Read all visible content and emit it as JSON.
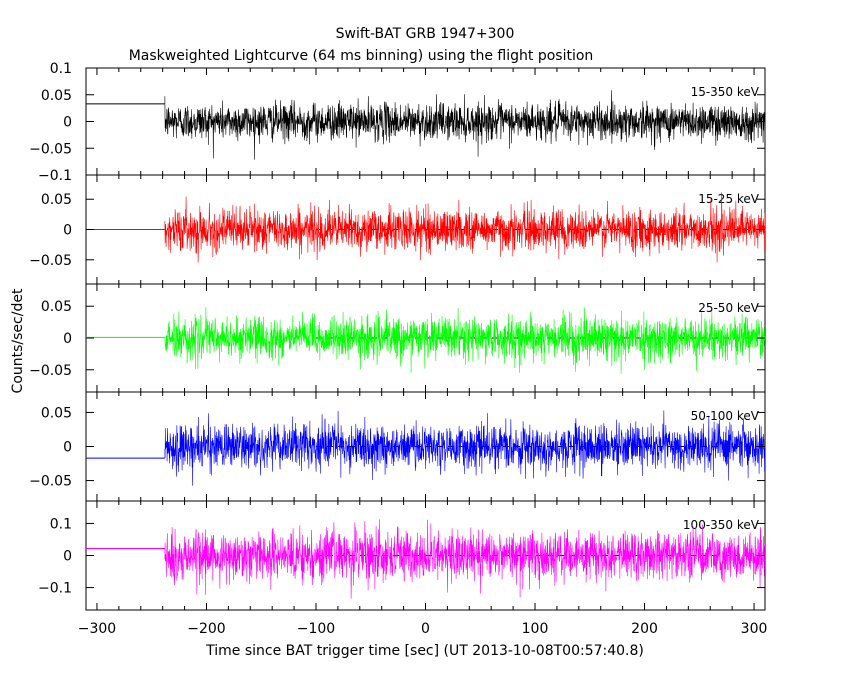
{
  "chart_data": {
    "type": "line",
    "title": "Swift-BAT GRB 1947+300",
    "subtitle": "Maskweighted Lightcurve (64 ms binning) using the flight position",
    "xlabel": "Time since BAT trigger time [sec] (UT 2013-10-08T00:57:40.8)",
    "ylabel": "Counts/sec/det",
    "xlim": [
      -310,
      310
    ],
    "xticks": [
      -300,
      -200,
      -100,
      0,
      100,
      200,
      300
    ],
    "data_start": -238,
    "panels": [
      {
        "band_label": "15-350 keV",
        "color": "#000000",
        "ylim": [
          -0.1,
          0.1
        ],
        "yticks": [
          {
            "v": 0.1,
            "t": "0.1"
          },
          {
            "v": 0.05,
            "t": "0.05"
          },
          {
            "v": 0,
            "t": "0"
          },
          {
            "v": -0.05,
            "t": "−0.05"
          },
          {
            "v": -0.1,
            "t": "−0.1"
          }
        ],
        "pre_level": 0.033,
        "noise_sigma": 0.017,
        "dashed_zero": false
      },
      {
        "band_label": "15-25 keV",
        "color": "#ff0000",
        "ylim": [
          -0.09,
          0.09
        ],
        "yticks": [
          {
            "v": 0.05,
            "t": "0.05"
          },
          {
            "v": 0,
            "t": "0"
          },
          {
            "v": -0.05,
            "t": "−0.05"
          }
        ],
        "pre_level": 0.0,
        "noise_sigma": 0.017,
        "dashed_zero": true
      },
      {
        "band_label": "25-50 keV",
        "color": "#00ff00",
        "ylim": [
          -0.085,
          0.085
        ],
        "yticks": [
          {
            "v": 0.05,
            "t": "0.05"
          },
          {
            "v": 0,
            "t": "0"
          },
          {
            "v": -0.05,
            "t": "−0.05"
          }
        ],
        "pre_level": 0.001,
        "noise_sigma": 0.016,
        "dashed_zero": true
      },
      {
        "band_label": "50-100 keV",
        "color": "#0000ff",
        "ylim": [
          -0.08,
          0.08
        ],
        "yticks": [
          {
            "v": 0.05,
            "t": "0.05"
          },
          {
            "v": 0,
            "t": "0"
          },
          {
            "v": -0.05,
            "t": "−0.05"
          }
        ],
        "pre_level": -0.017,
        "noise_sigma": 0.016,
        "dashed_zero": true
      },
      {
        "band_label": "100-350 keV",
        "color": "#ff00ff",
        "ylim": [
          -0.17,
          0.17
        ],
        "yticks": [
          {
            "v": 0.1,
            "t": "0.1"
          },
          {
            "v": 0,
            "t": "0"
          },
          {
            "v": -0.1,
            "t": "−0.1"
          }
        ],
        "pre_level": 0.022,
        "noise_sigma": 0.038,
        "dashed_zero": true
      }
    ]
  }
}
